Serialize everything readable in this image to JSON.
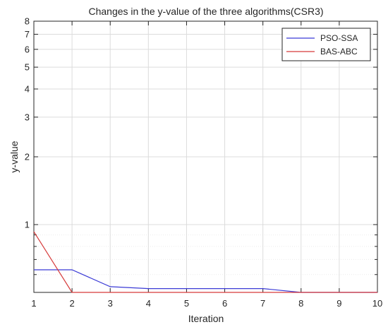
{
  "chart_data": {
    "type": "line",
    "title": "Changes in the y-value of the three algorithms(CSR3)",
    "xlabel": "Iteration",
    "ylabel": "y-value",
    "y_scale": "log",
    "xlim": [
      1,
      10
    ],
    "ylim": [
      0.5,
      8
    ],
    "xticks": [
      1,
      2,
      3,
      4,
      5,
      6,
      7,
      8,
      9,
      10
    ],
    "yticks": [
      1,
      2,
      3,
      4,
      5,
      6,
      7,
      8
    ],
    "ytick_labels": [
      "1",
      "2",
      "3",
      "4",
      "5",
      "6",
      "7",
      "8"
    ],
    "grid": true,
    "legend_position": "top-right",
    "x": [
      1,
      2,
      3,
      4,
      5,
      6,
      7,
      8,
      9,
      10
    ],
    "series": [
      {
        "name": "PSO-SSA",
        "color": "#3b3bd6",
        "values": [
          0.63,
          0.63,
          0.53,
          0.52,
          0.52,
          0.52,
          0.52,
          0.5,
          0.5,
          0.5
        ]
      },
      {
        "name": "BAS-ABC",
        "color": "#d63b3b",
        "values": [
          0.93,
          0.5,
          0.5,
          0.5,
          0.5,
          0.5,
          0.5,
          0.5,
          0.5,
          0.5
        ]
      }
    ]
  }
}
